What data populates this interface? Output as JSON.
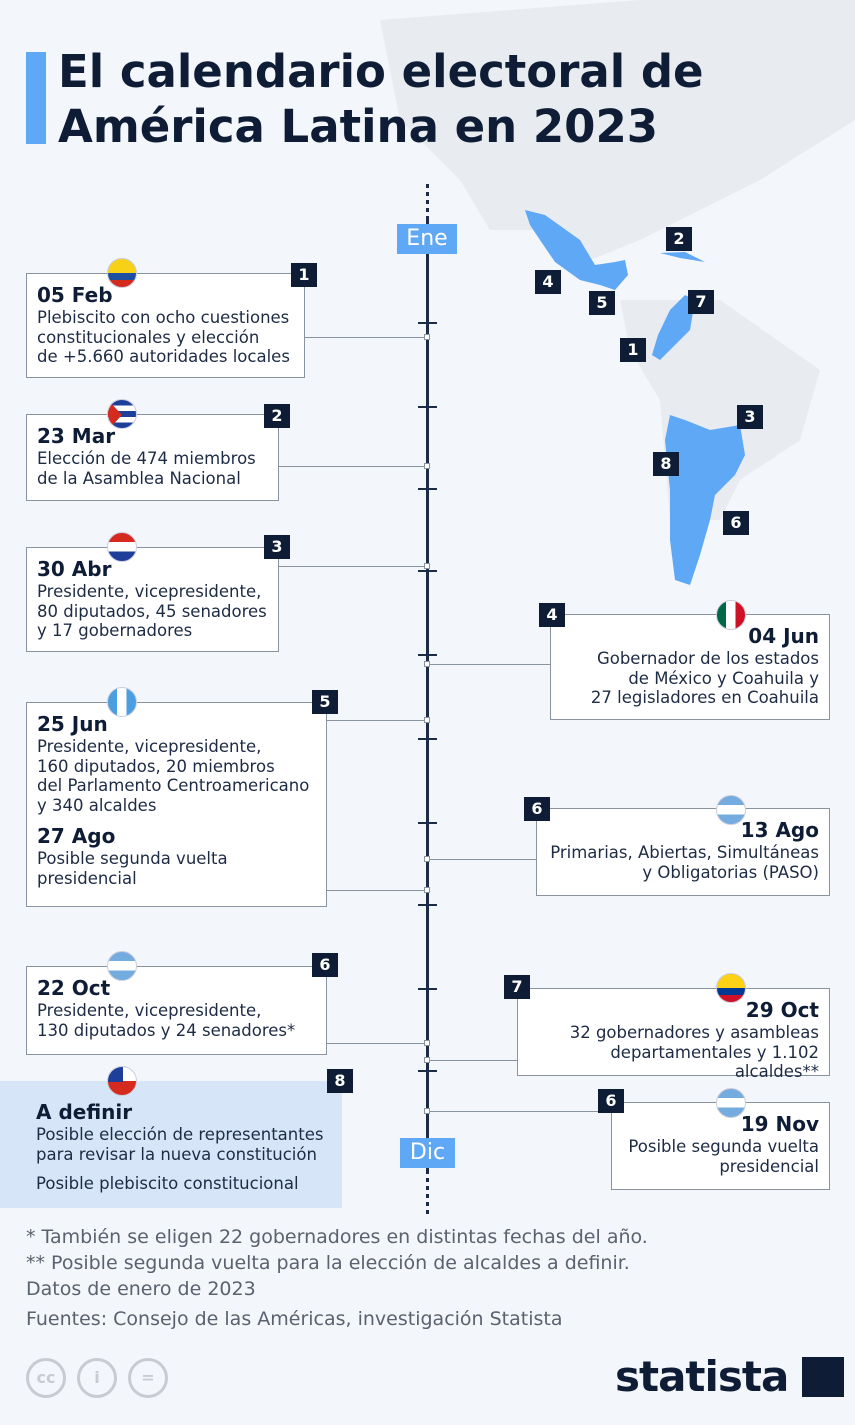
{
  "title_line1": "El calendario electoral de",
  "title_line2": "América Latina en 2023",
  "timeline": {
    "start": "Ene",
    "end": "Dic"
  },
  "events": [
    {
      "num": "1",
      "date": "05 Feb",
      "country_flag": "ecuador",
      "desc": [
        "Plebiscito con ocho cuestiones",
        "constitucionales y elección",
        "de +5.660 autoridades locales"
      ]
    },
    {
      "num": "2",
      "date": "23 Mar",
      "country_flag": "cuba",
      "desc": [
        "Elección de 474 miembros",
        "de la Asamblea Nacional"
      ]
    },
    {
      "num": "3",
      "date": "30 Abr",
      "country_flag": "paraguay",
      "desc": [
        "Presidente, vicepresidente,",
        "80 diputados, 45 senadores",
        "y 17 gobernadores"
      ]
    },
    {
      "num": "4",
      "date": "04 Jun",
      "country_flag": "mexico",
      "desc": [
        "Gobernador de los estados",
        "de México y Coahuila y",
        "27 legisladores en Coahuila"
      ]
    },
    {
      "num": "5",
      "date": "25 Jun",
      "country_flag": "guatemala",
      "desc": [
        "Presidente, vicepresidente,",
        "160 diputados, 20 miembros",
        "del Parlamento Centroamericano",
        "y 340 alcaldes"
      ],
      "date2": "27 Ago",
      "desc2": [
        "Posible segunda vuelta",
        "presidencial"
      ]
    },
    {
      "num": "6",
      "date": "13 Ago",
      "country_flag": "argentina",
      "desc": [
        "Primarias, Abiertas, Simultáneas",
        "y Obligatorias (PASO)"
      ]
    },
    {
      "num": "6",
      "date": "22 Oct",
      "country_flag": "argentina",
      "desc": [
        "Presidente, vicepresidente,",
        "130 diputados y 24 senadores*"
      ]
    },
    {
      "num": "7",
      "date": "29 Oct",
      "country_flag": "colombia",
      "desc": [
        "32 gobernadores y asambleas",
        "departamentales y 1.102 alcaldes**"
      ]
    },
    {
      "num": "8",
      "date": "A definir",
      "country_flag": "chile",
      "desc": [
        "Posible elección de representantes",
        "para revisar la nueva constitución"
      ],
      "desc2": [
        "Posible plebiscito constitucional"
      ]
    },
    {
      "num": "6",
      "date": "19 Nov",
      "country_flag": "argentina",
      "desc": [
        "Posible segunda vuelta",
        "presidencial"
      ]
    }
  ],
  "map_labels": [
    "2",
    "4",
    "5",
    "7",
    "1",
    "3",
    "8",
    "6"
  ],
  "footnotes": [
    "*   También se eligen 22 gobernadores en distintas fechas del año.",
    "** Posible segunda vuelta para la elección de alcaldes a definir.",
    "Datos de enero de 2023",
    "Fuentes: Consejo de las Américas, investigación Statista"
  ],
  "logo": "statista",
  "colors": {
    "accent": "#5fa8f5",
    "dark": "#0e1d35",
    "background": "#f3f6fa",
    "highlight": "#d6e6f8"
  }
}
